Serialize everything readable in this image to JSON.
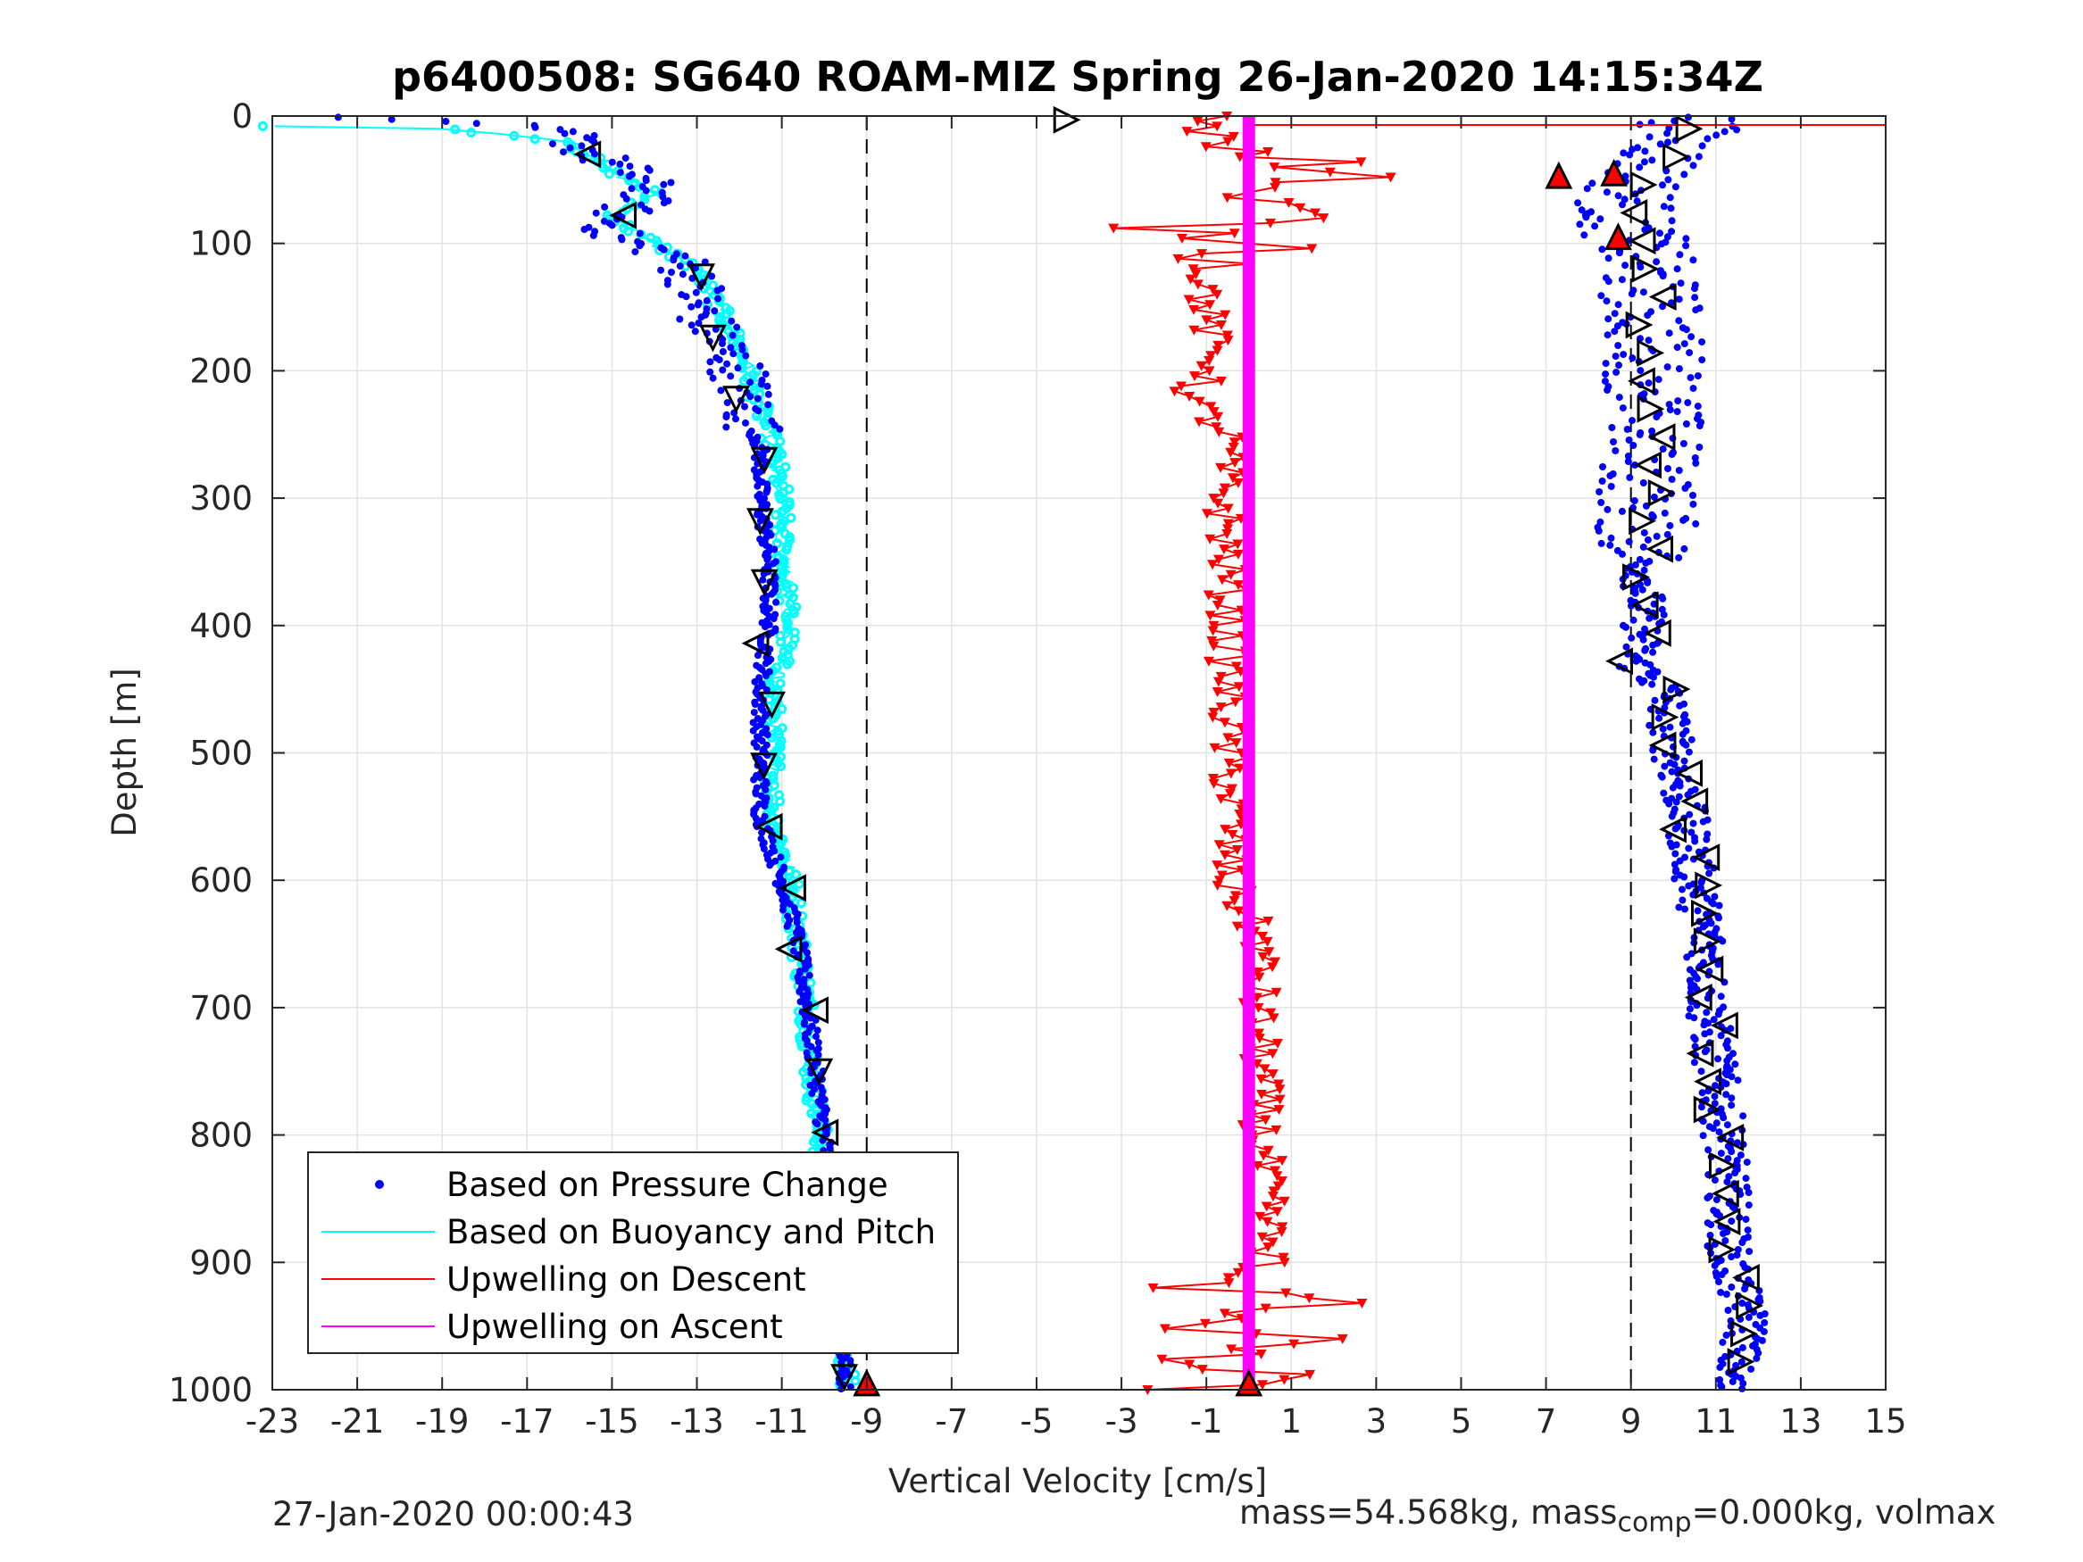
{
  "chart_data": {
    "type": "scatter",
    "title": "p6400508: SG640 ROAM-MIZ Spring 26-Jan-2020 14:15:34Z",
    "xlabel": "Vertical Velocity [cm/s]",
    "ylabel": "Depth [m]",
    "xlim": [
      -23,
      15
    ],
    "ylim": [
      0,
      1000
    ],
    "y_reversed": true,
    "grid": true,
    "legend_position": "bottom-left",
    "x_ticks": [
      "-23",
      "-21",
      "-19",
      "-17",
      "-15",
      "-13",
      "-11",
      "-9",
      "-7",
      "-5",
      "-3",
      "-1",
      "1",
      "3",
      "5",
      "7",
      "9",
      "11",
      "13",
      "15"
    ],
    "y_ticks": [
      "0",
      "100",
      "200",
      "300",
      "400",
      "500",
      "600",
      "700",
      "800",
      "900",
      "1000"
    ],
    "reference_lines_x": [
      -9,
      9
    ],
    "series": [
      {
        "name": "Based on Pressure Change",
        "color": "#0000ff",
        "descent_profile": [
          [
            0,
            -23
          ],
          [
            5,
            -18
          ],
          [
            15,
            -16
          ],
          [
            30,
            -15.5
          ],
          [
            45,
            -14.5
          ],
          [
            60,
            -14
          ],
          [
            80,
            -15
          ],
          [
            95,
            -15
          ],
          [
            110,
            -13.5
          ],
          [
            130,
            -13
          ],
          [
            150,
            -13
          ],
          [
            175,
            -12.5
          ],
          [
            200,
            -12
          ],
          [
            230,
            -11.8
          ],
          [
            260,
            -11.5
          ],
          [
            300,
            -11.5
          ],
          [
            350,
            -11.3
          ],
          [
            400,
            -11.3
          ],
          [
            450,
            -11.5
          ],
          [
            500,
            -11.5
          ],
          [
            550,
            -11.5
          ],
          [
            600,
            -11
          ],
          [
            650,
            -10.6
          ],
          [
            700,
            -10.4
          ],
          [
            750,
            -10.2
          ],
          [
            800,
            -10
          ],
          [
            850,
            -9.8
          ],
          [
            900,
            -9.8
          ],
          [
            950,
            -9.6
          ],
          [
            1000,
            -9.5
          ]
        ],
        "ascent_profile": [
          [
            0,
            10.5
          ],
          [
            20,
            10.2
          ],
          [
            40,
            9.5
          ],
          [
            60,
            9
          ],
          [
            80,
            8.8
          ],
          [
            100,
            9.2
          ],
          [
            150,
            9.5
          ],
          [
            200,
            9.6
          ],
          [
            250,
            9.5
          ],
          [
            300,
            9.4
          ],
          [
            350,
            9.3
          ],
          [
            400,
            9.3
          ],
          [
            430,
            9.1
          ],
          [
            450,
            9.8
          ],
          [
            500,
            10
          ],
          [
            550,
            10.3
          ],
          [
            600,
            10.5
          ],
          [
            650,
            10.8
          ],
          [
            700,
            10.8
          ],
          [
            750,
            11
          ],
          [
            800,
            11.2
          ],
          [
            850,
            11.3
          ],
          [
            900,
            11.3
          ],
          [
            950,
            11.8
          ],
          [
            1000,
            11.2
          ]
        ]
      },
      {
        "name": "Based on Buoyancy and Pitch",
        "color": "#00ffff",
        "profile": [
          [
            8,
            -23
          ],
          [
            10,
            -19
          ],
          [
            20,
            -16
          ],
          [
            40,
            -15.2
          ],
          [
            60,
            -14
          ],
          [
            80,
            -15
          ],
          [
            100,
            -14
          ],
          [
            120,
            -13
          ],
          [
            150,
            -12.5
          ],
          [
            180,
            -12
          ],
          [
            200,
            -11.8
          ],
          [
            230,
            -11.5
          ],
          [
            260,
            -11.2
          ],
          [
            300,
            -11
          ],
          [
            350,
            -11
          ],
          [
            400,
            -10.8
          ],
          [
            450,
            -11.2
          ],
          [
            500,
            -11.2
          ],
          [
            550,
            -11.2
          ],
          [
            600,
            -10.8
          ],
          [
            650,
            -10.6
          ],
          [
            700,
            -10.4
          ],
          [
            750,
            -10.3
          ],
          [
            800,
            -10.1
          ],
          [
            850,
            -10
          ],
          [
            900,
            -9.9
          ],
          [
            950,
            -9.6
          ],
          [
            1000,
            -9.4
          ]
        ]
      },
      {
        "name": "Upwelling on Descent",
        "color": "#ff0000",
        "profile": [
          [
            0,
            0
          ],
          [
            10,
            -1
          ],
          [
            30,
            1
          ],
          [
            50,
            2.5
          ],
          [
            60,
            -0.5
          ],
          [
            80,
            1
          ],
          [
            90,
            -2.5
          ],
          [
            100,
            1
          ],
          [
            120,
            -1
          ],
          [
            150,
            -1
          ],
          [
            200,
            -0.8
          ],
          [
            220,
            -1.5
          ],
          [
            250,
            -0.5
          ],
          [
            300,
            -0.6
          ],
          [
            350,
            -0.5
          ],
          [
            400,
            -0.5
          ],
          [
            450,
            -0.5
          ],
          [
            500,
            -0.5
          ],
          [
            550,
            -0.4
          ],
          [
            600,
            -0.5
          ],
          [
            650,
            0.3
          ],
          [
            700,
            0.2
          ],
          [
            750,
            0.3
          ],
          [
            800,
            0.3
          ],
          [
            850,
            0.4
          ],
          [
            900,
            0.5
          ],
          [
            920,
            -1.8
          ],
          [
            930,
            2.5
          ],
          [
            950,
            -2
          ],
          [
            960,
            2
          ],
          [
            980,
            -2.2
          ],
          [
            990,
            2.2
          ],
          [
            1000,
            -2.5
          ]
        ]
      },
      {
        "name": "Upwelling on Ascent",
        "color": "#ff00ff",
        "profile": [
          [
            0,
            0
          ],
          [
            1000,
            0
          ]
        ]
      }
    ]
  },
  "footer": {
    "left_text": "27-Jan-2020 00:00:43",
    "right_prefix": "mass=54.568kg, mass",
    "right_sub": "comp",
    "right_suffix": "=0.000kg, volmax"
  }
}
